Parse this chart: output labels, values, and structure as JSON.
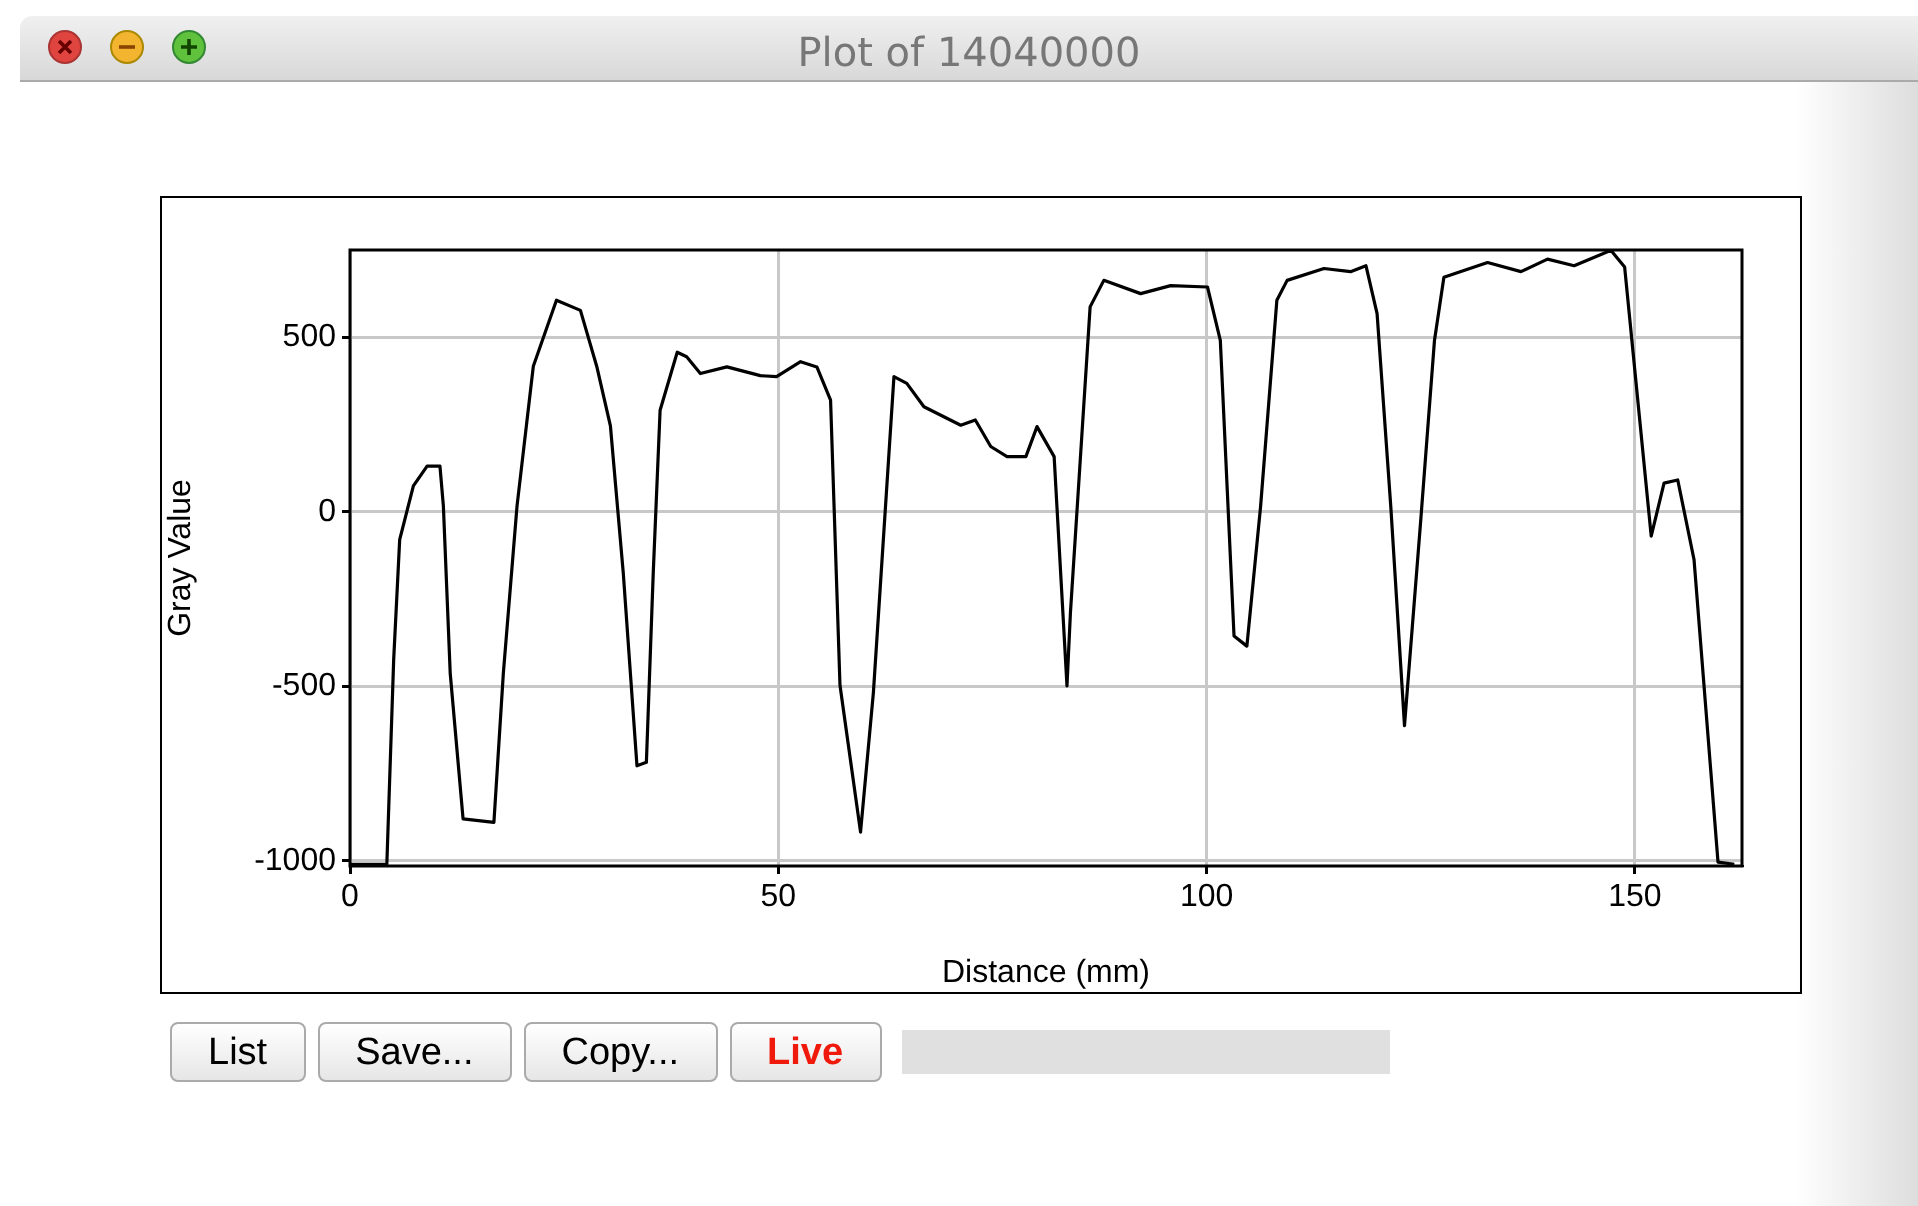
{
  "chart_data": {
    "type": "line",
    "title": "Plot of 14040000",
    "xlabel": "Distance (mm)",
    "ylabel": "Gray Value",
    "xlim": [
      0,
      162.5
    ],
    "xticks": [
      0,
      50,
      100,
      150
    ],
    "ylim": [
      -1015,
      750
    ],
    "yticks": [
      -1000,
      -500,
      0,
      500
    ],
    "grid": true,
    "legend": false,
    "marker": "none",
    "line_style": "solid",
    "series": [
      {
        "color": "#000000",
        "x": [
          0,
          4.3,
          5.1,
          5.8,
          7.4,
          9.0,
          10.5,
          10.9,
          11.7,
          13.2,
          16.8,
          17.9,
          19.5,
          21.4,
          24.1,
          26.9,
          28.8,
          30.4,
          31.9,
          33.5,
          34.6,
          35.4,
          36.2,
          38.2,
          39.3,
          40.9,
          44.0,
          47.9,
          49.8,
          52.6,
          54.5,
          56.1,
          57.2,
          59.6,
          61.1,
          63.5,
          65.0,
          67.0,
          71.3,
          73.0,
          74.8,
          76.7,
          78.9,
          80.2,
          82.2,
          83.7,
          84.1,
          86.4,
          88.0,
          92.3,
          95.8,
          100.1,
          101.6,
          103.2,
          104.7,
          106.3,
          108.2,
          109.4,
          113.7,
          116.8,
          118.6,
          119.9,
          121.5,
          123.1,
          125.0,
          126.6,
          127.7,
          132.8,
          136.7,
          139.8,
          142.9,
          147.2,
          148.8,
          151.9,
          153.4,
          155.0,
          156.9,
          159.7,
          161.6
        ],
        "values": [
          -1010,
          -1010,
          -423,
          -80,
          74,
          131,
          131,
          17,
          -463,
          -880,
          -890,
          -463,
          17,
          417,
          606,
          577,
          417,
          246,
          -175,
          -728,
          -718,
          -175,
          291,
          457,
          444,
          396,
          415,
          390,
          387,
          430,
          415,
          320,
          -497,
          -918,
          -518,
          387,
          368,
          301,
          248,
          263,
          187,
          158,
          158,
          244,
          158,
          -499,
          -290,
          587,
          663,
          625,
          648,
          644,
          491,
          -356,
          -385,
          15,
          606,
          663,
          697,
          688,
          705,
          568,
          15,
          -613,
          -23,
          491,
          672,
          714,
          688,
          724,
          705,
          749,
          701,
          -70,
          82,
          91,
          -137,
          -1004,
          -1010
        ]
      }
    ],
    "annotations": [
      "List",
      "Save...",
      "Copy...",
      "Live"
    ]
  }
}
